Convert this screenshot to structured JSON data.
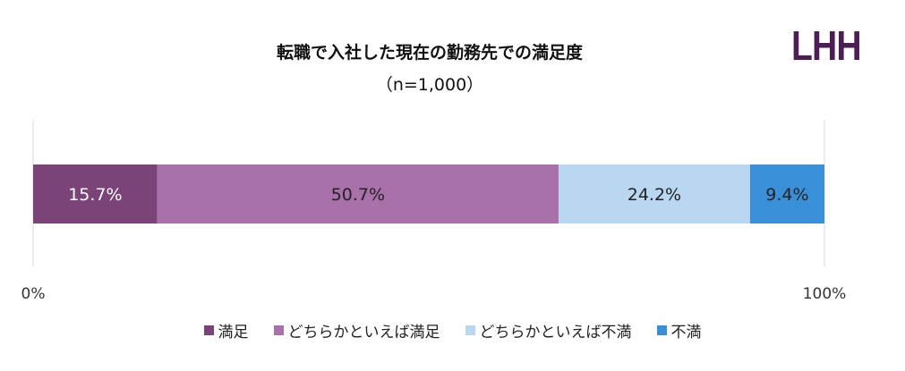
{
  "logo_text": "LHH",
  "chart_data": {
    "type": "bar",
    "orientation": "horizontal-stacked-100",
    "title": "転職で入社した現在の勤務先での満足度",
    "subtitle": "（n=1,000）",
    "xlim": [
      0,
      100
    ],
    "x_tick_labels": [
      "0%",
      "100%"
    ],
    "grid": false,
    "legend_position": "bottom",
    "series": [
      {
        "name": "満足",
        "value": 15.7,
        "label": "15.7%",
        "color": "#7a4479",
        "label_color": "#ffffff"
      },
      {
        "name": "どちらかといえば満足",
        "value": 50.7,
        "label": "50.7%",
        "color": "#a971a9",
        "label_color": "#222222"
      },
      {
        "name": "どちらかといえば不満",
        "value": 24.2,
        "label": "24.2%",
        "color": "#b9d7f1",
        "label_color": "#222222"
      },
      {
        "name": "不満",
        "value": 9.4,
        "label": "9.4%",
        "color": "#3a8fd9",
        "label_color": "#222222"
      }
    ]
  }
}
